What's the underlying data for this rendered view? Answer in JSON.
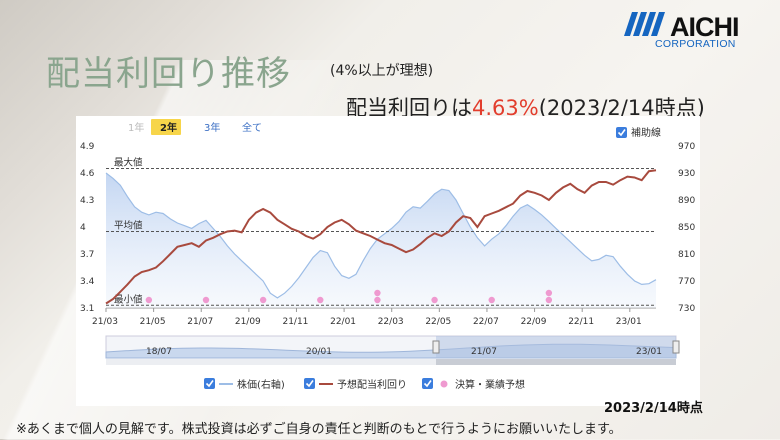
{
  "header": {
    "title": "配当利回り推移",
    "subtitle": "(4%以上が理想)",
    "yield_prefix": "配当利回りは",
    "yield_value": "4.63%",
    "yield_suffix": "(2023/2/14時点)"
  },
  "logo": {
    "name": "AICHI",
    "sub": "CORPORATION"
  },
  "footer": {
    "date": "2023/2/14時点",
    "disclaimer": "※あくまで個人の見解です。株式投資は必ずご自身の責任と判断のもとで行うようにお願いいたします。"
  },
  "chart_data": {
    "type": "line",
    "range_buttons": [
      {
        "label": "1年",
        "active": false
      },
      {
        "label": "2年",
        "active": true
      },
      {
        "label": "3年",
        "active": false
      },
      {
        "label": "全て",
        "active": false
      }
    ],
    "aux_line_label": "補助線",
    "x_ticks": [
      "21/03",
      "21/05",
      "21/07",
      "21/09",
      "21/11",
      "22/01",
      "22/03",
      "22/05",
      "22/07",
      "22/09",
      "22/11",
      "23/01"
    ],
    "left_axis": {
      "ticks": [
        "4.9",
        "4.6",
        "4.3",
        "4",
        "3.7",
        "3.4",
        "3.1"
      ],
      "range": [
        3.1,
        4.9
      ]
    },
    "right_axis": {
      "ticks": [
        "970",
        "930",
        "890",
        "850",
        "810",
        "770",
        "730"
      ],
      "range": [
        730,
        970
      ]
    },
    "reference_lines": [
      {
        "label": "最大値",
        "value": 4.65
      },
      {
        "label": "平均値",
        "value": 3.95
      },
      {
        "label": "最小値",
        "value": 3.13
      }
    ],
    "navigator_ticks": [
      "18/07",
      "20/01",
      "21/07",
      "23/01"
    ],
    "legend": [
      "株価(右軸)",
      "予想配当利回り",
      "決算・業績予想"
    ],
    "series": [
      {
        "name": "株価(右軸)",
        "axis": "right",
        "color": "#9dbde6",
        "x": [
          0,
          0.3,
          0.6,
          0.9,
          1.2,
          1.5,
          1.8,
          2.1,
          2.4,
          2.7,
          3.0,
          3.3,
          3.6,
          3.9,
          4.2,
          4.5,
          4.8,
          5.1,
          5.4,
          5.7,
          6.0,
          6.3,
          6.6,
          6.9,
          7.2,
          7.5,
          7.8,
          8.1,
          8.4,
          8.7,
          9.0,
          9.3,
          9.6,
          9.9,
          10.2,
          10.5,
          10.8,
          11.1,
          11.4,
          11.7,
          12.0,
          12.3,
          12.6,
          12.9,
          13.2,
          13.5,
          13.8,
          14.1,
          14.4,
          14.7,
          15.0,
          15.3,
          15.6,
          15.9,
          16.2,
          16.5,
          16.8,
          17.1,
          17.4,
          17.7,
          18.0,
          18.3,
          18.6,
          18.9,
          19.2,
          19.5,
          19.8,
          20.1,
          20.4,
          20.7,
          21.0,
          21.3,
          21.6,
          21.9,
          22.2,
          22.5,
          22.8,
          23.1
        ],
        "values": [
          930,
          922,
          912,
          895,
          880,
          872,
          868,
          872,
          870,
          862,
          856,
          852,
          848,
          855,
          860,
          848,
          836,
          822,
          810,
          800,
          790,
          780,
          770,
          752,
          745,
          752,
          762,
          775,
          790,
          805,
          815,
          812,
          792,
          778,
          774,
          780,
          800,
          818,
          832,
          840,
          848,
          858,
          872,
          880,
          878,
          888,
          899,
          906,
          904,
          890,
          870,
          850,
          834,
          822,
          832,
          840,
          852,
          866,
          878,
          883,
          876,
          868,
          858,
          848,
          838,
          828,
          818,
          808,
          800,
          802,
          808,
          806,
          792,
          780,
          770,
          765,
          766,
          772
        ]
      },
      {
        "name": "予想配当利回り",
        "axis": "left",
        "color": "#a84a3e",
        "x": [
          0,
          0.3,
          0.6,
          0.9,
          1.2,
          1.5,
          1.8,
          2.1,
          2.4,
          2.7,
          3.0,
          3.3,
          3.6,
          3.9,
          4.2,
          4.5,
          4.8,
          5.1,
          5.4,
          5.7,
          6.0,
          6.3,
          6.6,
          6.9,
          7.2,
          7.5,
          7.8,
          8.1,
          8.4,
          8.7,
          9.0,
          9.3,
          9.6,
          9.9,
          10.2,
          10.5,
          10.8,
          11.1,
          11.4,
          11.7,
          12.0,
          12.3,
          12.6,
          12.9,
          13.2,
          13.5,
          13.8,
          14.1,
          14.4,
          14.7,
          15.0,
          15.3,
          15.6,
          15.9,
          16.2,
          16.5,
          16.8,
          17.1,
          17.4,
          17.7,
          18.0,
          18.3,
          18.6,
          18.9,
          19.2,
          19.5,
          19.8,
          20.1,
          20.4,
          20.7,
          21.0,
          21.3,
          21.6,
          21.9,
          22.2,
          22.5,
          22.8,
          23.1
        ],
        "values": [
          3.15,
          3.2,
          3.28,
          3.36,
          3.45,
          3.5,
          3.52,
          3.55,
          3.62,
          3.7,
          3.78,
          3.8,
          3.82,
          3.78,
          3.85,
          3.88,
          3.92,
          3.95,
          3.96,
          3.94,
          4.08,
          4.16,
          4.2,
          4.16,
          4.08,
          4.03,
          3.98,
          3.95,
          3.9,
          3.87,
          3.92,
          4.0,
          4.05,
          4.08,
          4.03,
          3.96,
          3.93,
          3.9,
          3.86,
          3.82,
          3.8,
          3.76,
          3.72,
          3.75,
          3.81,
          3.88,
          3.93,
          3.9,
          3.95,
          4.05,
          4.12,
          4.1,
          4.0,
          4.12,
          4.15,
          4.18,
          4.22,
          4.26,
          4.35,
          4.4,
          4.38,
          4.35,
          4.3,
          4.38,
          4.44,
          4.48,
          4.42,
          4.38,
          4.46,
          4.5,
          4.5,
          4.47,
          4.52,
          4.56,
          4.55,
          4.52,
          4.62,
          4.63
        ]
      }
    ],
    "events_x": [
      1.8,
      4.2,
      6.6,
      9.0,
      11.4,
      11.4,
      13.8,
      16.2,
      18.6,
      18.6
    ]
  }
}
